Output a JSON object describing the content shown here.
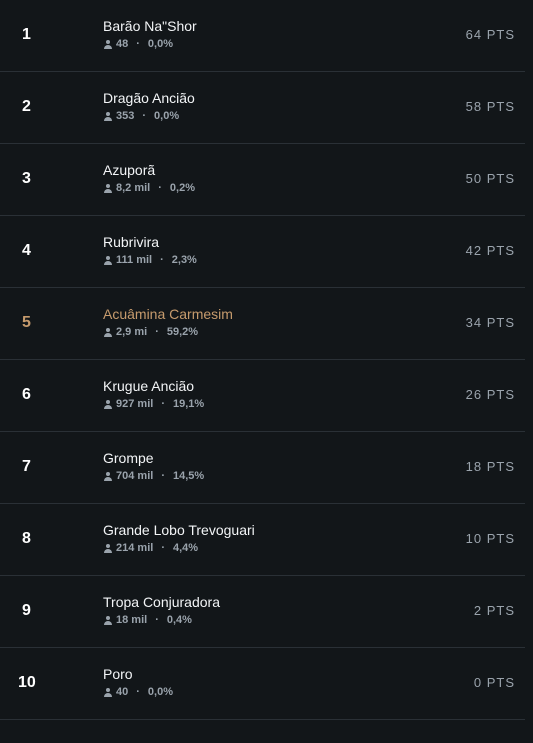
{
  "colors": {
    "background": "#121619",
    "divider": "#2a3036",
    "text": "#f3f5f7",
    "muted": "#9aa3ac",
    "highlight": "#c69b6d"
  },
  "rows": [
    {
      "rank": "1",
      "name": "Barão Na\"Shor",
      "players": "48",
      "percent": "0,0%",
      "points": "64 PTS",
      "highlight": false
    },
    {
      "rank": "2",
      "name": "Dragão Ancião",
      "players": "353",
      "percent": "0,0%",
      "points": "58 PTS",
      "highlight": false
    },
    {
      "rank": "3",
      "name": "Azuporã",
      "players": "8,2 mil",
      "percent": "0,2%",
      "points": "50 PTS",
      "highlight": false
    },
    {
      "rank": "4",
      "name": "Rubrivira",
      "players": "111 mil",
      "percent": "2,3%",
      "points": "42 PTS",
      "highlight": false
    },
    {
      "rank": "5",
      "name": "Acuâmina Carmesim",
      "players": "2,9 mi",
      "percent": "59,2%",
      "points": "34 PTS",
      "highlight": true
    },
    {
      "rank": "6",
      "name": "Krugue Ancião",
      "players": "927 mil",
      "percent": "19,1%",
      "points": "26 PTS",
      "highlight": false
    },
    {
      "rank": "7",
      "name": "Grompe",
      "players": "704 mil",
      "percent": "14,5%",
      "points": "18 PTS",
      "highlight": false
    },
    {
      "rank": "8",
      "name": "Grande Lobo Trevoguari",
      "players": "214 mil",
      "percent": "4,4%",
      "points": "10 PTS",
      "highlight": false
    },
    {
      "rank": "9",
      "name": "Tropa Conjuradora",
      "players": "18 mil",
      "percent": "0,4%",
      "points": "2 PTS",
      "highlight": false
    },
    {
      "rank": "10",
      "name": "Poro",
      "players": "40",
      "percent": "0,0%",
      "points": "0 PTS",
      "highlight": false
    }
  ]
}
